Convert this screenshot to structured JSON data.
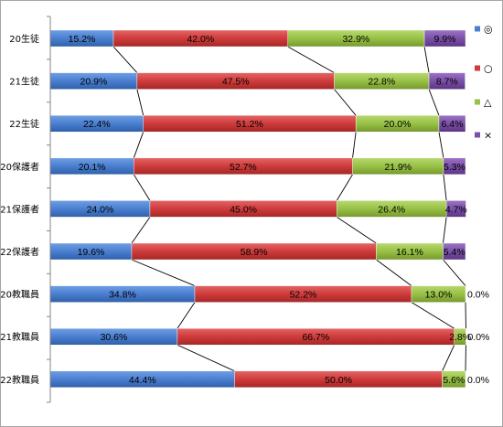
{
  "chart_data": {
    "type": "bar",
    "orientation": "horizontal",
    "stacked": "percent",
    "series_lines": true,
    "categories": [
      "20生徒",
      "21生徒",
      "22生徒",
      "20保護者",
      "21保護者",
      "22保護者",
      "20教職員",
      "21教職員",
      "22教職員"
    ],
    "series": [
      {
        "name": "◎",
        "color": "#4a7fd0",
        "values": [
          15.2,
          20.9,
          22.4,
          20.1,
          24.0,
          19.6,
          34.8,
          30.6,
          44.4
        ],
        "labels": [
          "15.2%",
          "20.9%",
          "22.4%",
          "20.1%",
          "24.0%",
          "19.6%",
          "34.8%",
          "30.6%",
          "44.4%"
        ]
      },
      {
        "name": "○",
        "color": "#cf3b3b",
        "values": [
          42.0,
          47.5,
          51.2,
          52.7,
          45.0,
          58.9,
          52.2,
          66.7,
          50.0
        ],
        "labels": [
          "42.0%",
          "47.5%",
          "51.2%",
          "52.7%",
          "45.0%",
          "58.9%",
          "52.2%",
          "66.7%",
          "50.0%"
        ]
      },
      {
        "name": "△",
        "color": "#98c145",
        "values": [
          32.9,
          22.8,
          20.0,
          21.9,
          26.4,
          16.1,
          13.0,
          2.8,
          5.6
        ],
        "labels": [
          "32.9%",
          "22.8%",
          "20.0%",
          "21.9%",
          "26.4%",
          "16.1%",
          "13.0%",
          "2.8%",
          "5.6%"
        ]
      },
      {
        "name": "×",
        "color": "#7b50a8",
        "values": [
          9.9,
          8.7,
          6.4,
          5.3,
          4.7,
          5.4,
          0.0,
          0.0,
          0.0
        ],
        "labels": [
          "9.9%",
          "8.7%",
          "6.4%",
          "5.3%",
          "4.7%",
          "5.4%",
          "0.0%",
          "0.0%",
          "0.0%"
        ]
      }
    ],
    "xlim": [
      0,
      100
    ],
    "grid": false,
    "legend_position": "right"
  }
}
